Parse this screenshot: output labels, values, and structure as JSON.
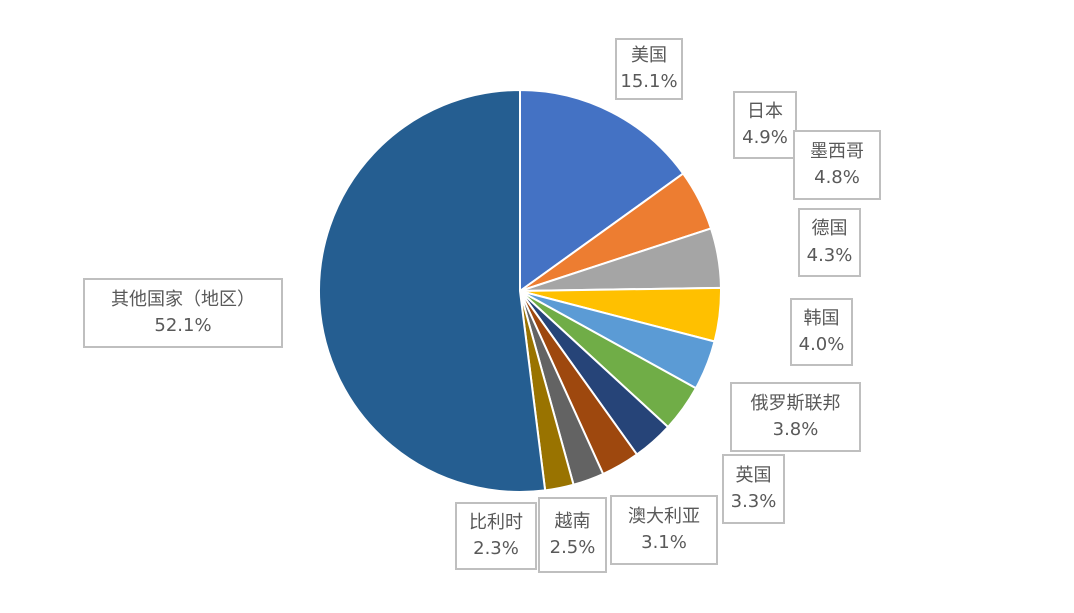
{
  "chart_data": {
    "type": "pie",
    "title": "",
    "legend": "none",
    "labels": [
      "美国",
      "日本",
      "墨西哥",
      "德国",
      "韩国",
      "俄罗斯联邦",
      "英国",
      "澳大利亚",
      "越南",
      "比利时",
      "其他国家（地区）"
    ],
    "values": [
      15.1,
      4.9,
      4.8,
      4.3,
      4.0,
      3.8,
      3.3,
      3.1,
      2.5,
      2.3,
      52.1
    ],
    "value_labels": [
      "15.1%",
      "4.9%",
      "4.8%",
      "4.3%",
      "4.0%",
      "3.8%",
      "3.3%",
      "3.1%",
      "2.5%",
      "2.3%",
      "52.1%"
    ],
    "colors": [
      "#4472C4",
      "#ED7D31",
      "#A5A5A5",
      "#FFC000",
      "#5B9BD5",
      "#70AD47",
      "#264478",
      "#9E480E",
      "#636363",
      "#997300",
      "#255E91"
    ],
    "start_angle_deg": -90,
    "direction": "clockwise",
    "separator_color": "#FFFFFF",
    "label_text_color": "#595959",
    "label_border_color": "#BFBFBF",
    "label_background": "#FFFFFF",
    "background": "#FFFFFF"
  }
}
